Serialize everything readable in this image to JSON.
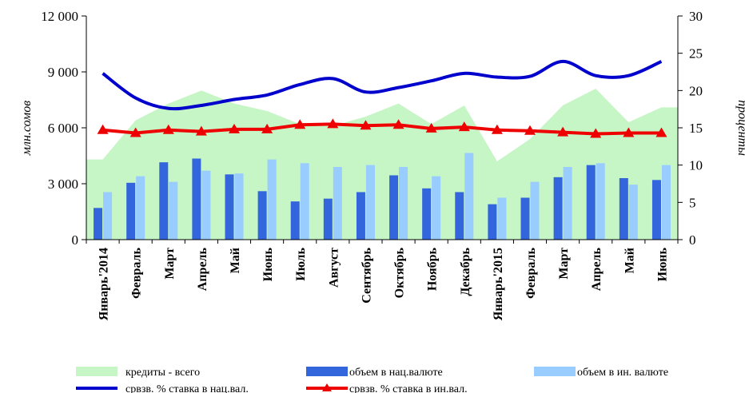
{
  "chart_data": {
    "type": "bar",
    "categories": [
      "Январь'2014",
      "Февраль",
      "Март",
      "Апрель",
      "Май",
      "Июнь",
      "Июль",
      "Август",
      "Сентябрь",
      "Октябрь",
      "Ноябрь",
      "Декабрь",
      "Январь'2015",
      "Февраль",
      "Март",
      "Апрель",
      "Май",
      "Июнь"
    ],
    "ylabel": "млн.сомов",
    "y2label": "проценты",
    "ylim": [
      0,
      12000
    ],
    "y2lim": [
      0,
      30
    ],
    "yticks": [
      "0",
      "3 000",
      "6 000",
      "9 000",
      "12 000"
    ],
    "y2ticks": [
      "0",
      "5",
      "10",
      "15",
      "20",
      "25",
      "30"
    ],
    "series": [
      {
        "name": "кредиты - всего",
        "kind": "area",
        "axis": "left",
        "color": "#c6f5c6",
        "values": [
          4300,
          6400,
          7300,
          8000,
          7300,
          6900,
          6200,
          6100,
          6600,
          7300,
          6200,
          7200,
          4200,
          5400,
          7200,
          8100,
          6300,
          7100
        ]
      },
      {
        "name": "объем в нац.валюте",
        "kind": "bar",
        "axis": "left",
        "color": "#3366dd",
        "values": [
          1700,
          3050,
          4150,
          4350,
          3500,
          2600,
          2050,
          2200,
          2550,
          3450,
          2750,
          2550,
          1900,
          2250,
          3350,
          4000,
          3300,
          3200
        ]
      },
      {
        "name": "объем в ин. валюте",
        "kind": "bar",
        "axis": "left",
        "color": "#99ccff",
        "values": [
          2550,
          3400,
          3100,
          3700,
          3550,
          4300,
          4100,
          3900,
          4000,
          3900,
          3400,
          4650,
          2250,
          3100,
          3900,
          4100,
          2950,
          4000
        ]
      },
      {
        "name": "срвзв. % ставка в нац.вал.",
        "kind": "line",
        "axis": "right",
        "color": "#0000cc",
        "values": [
          22.3,
          19.0,
          17.6,
          18.0,
          18.8,
          19.4,
          20.8,
          21.6,
          19.8,
          20.4,
          21.3,
          22.3,
          21.8,
          21.9,
          23.9,
          22.0,
          22.0,
          23.9
        ]
      },
      {
        "name": "срвзв. % ставка в ин.вал.",
        "kind": "line",
        "axis": "right",
        "color": "#ee0000",
        "values": [
          14.7,
          14.3,
          14.7,
          14.5,
          14.8,
          14.8,
          15.4,
          15.5,
          15.3,
          15.4,
          14.9,
          15.1,
          14.7,
          14.6,
          14.4,
          14.2,
          14.3,
          14.3
        ]
      }
    ]
  }
}
